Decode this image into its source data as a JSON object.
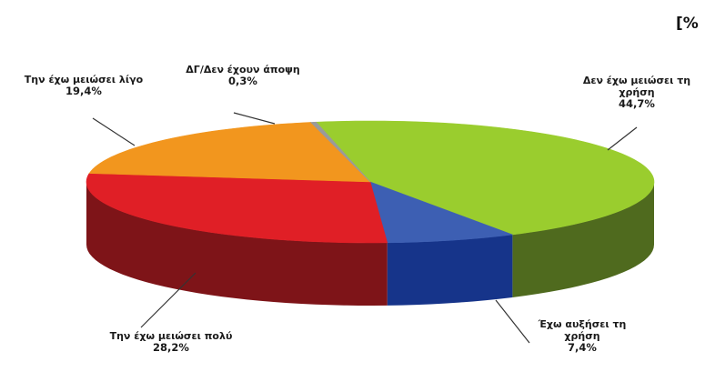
{
  "chart_data": {
    "type": "pie",
    "title": "",
    "corner_label": "[%",
    "slices": [
      {
        "label_lines": [
          "Δεν έχω μειώσει τη",
          "χρήση"
        ],
        "value": 44.7,
        "value_text": "44,7%",
        "color": "#9ACD2E",
        "side_color": "#4F6A1E"
      },
      {
        "label_lines": [
          "Έχω αυξήσει τη",
          "χρήση"
        ],
        "value": 7.4,
        "value_text": "7,4%",
        "color": "#3D5FB3",
        "side_color": "#16348A"
      },
      {
        "label_lines": [
          "Την έχω μειώσει πολύ"
        ],
        "value": 28.2,
        "value_text": "28,2%",
        "color": "#E01F26",
        "side_color": "#7E1418"
      },
      {
        "label_lines": [
          "Την έχω μειώσει λίγο"
        ],
        "value": 19.4,
        "value_text": "19,4%",
        "color": "#F2961E",
        "side_color": "#A8620F"
      },
      {
        "label_lines": [
          "ΔΓ/Δεν έχουν άποψη"
        ],
        "value": 0.3,
        "value_text": "0,3%",
        "color": "#9A9A9A",
        "side_color": "#5A5A5A"
      }
    ]
  }
}
